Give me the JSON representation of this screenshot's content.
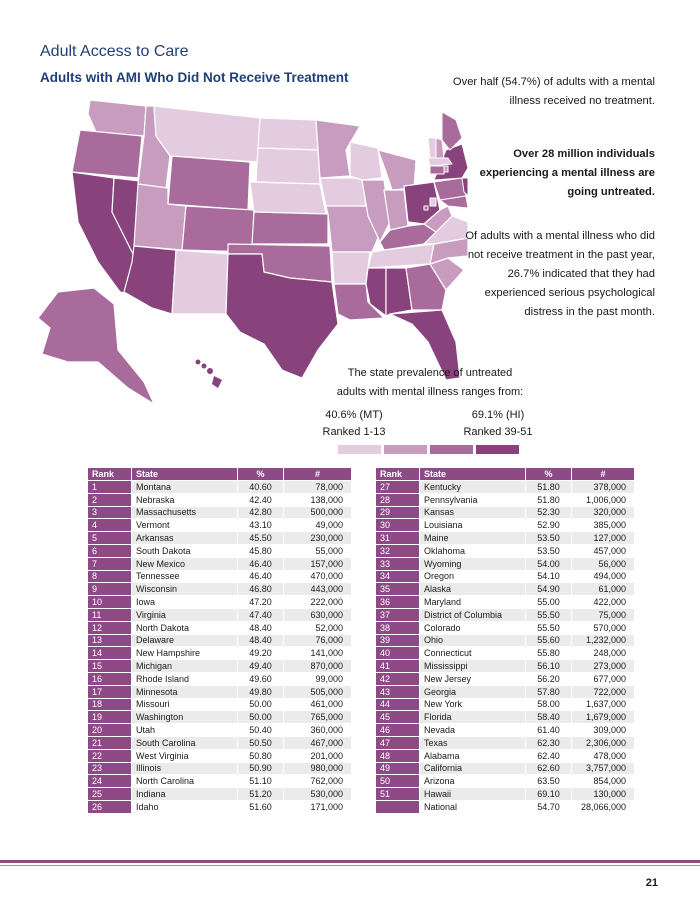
{
  "header": {
    "section_title": "Adult Access to Care",
    "subtitle": "Adults with AMI Who Did Not Receive Treatment"
  },
  "callouts": {
    "p1": "Over half (54.7%) of adults with a mental illness received no treatment.",
    "p2": "Over 28 million individuals experiencing a mental illness are going untreated.",
    "p3": "Of adults with a mental illness who did not receive treatment in the past year, 26.7% indicated that they had experienced serious psychological distress in the past month."
  },
  "legend": {
    "caption": "The state prevalence of untreated adults with mental illness ranges from:",
    "low_value": "40.6% (MT)",
    "low_rank": "Ranked 1-13",
    "high_value": "69.1% (HI)",
    "high_rank": "Ranked 39-51",
    "colors": [
      "#e3ccdf",
      "#c79cbf",
      "#a86b9c",
      "#88427c"
    ]
  },
  "table": {
    "headers": {
      "rank": "Rank",
      "state": "State",
      "percent": "%",
      "count": "#"
    },
    "left_rows": [
      [
        "1",
        "Montana",
        "40.60",
        "78,000"
      ],
      [
        "2",
        "Nebraska",
        "42.40",
        "138,000"
      ],
      [
        "3",
        "Massachusetts",
        "42.80",
        "500,000"
      ],
      [
        "4",
        "Vermont",
        "43.10",
        "49,000"
      ],
      [
        "5",
        "Arkansas",
        "45.50",
        "230,000"
      ],
      [
        "6",
        "South Dakota",
        "45.80",
        "55,000"
      ],
      [
        "7",
        "New Mexico",
        "46.40",
        "157,000"
      ],
      [
        "8",
        "Tennessee",
        "46.40",
        "470,000"
      ],
      [
        "9",
        "Wisconsin",
        "46.80",
        "443,000"
      ],
      [
        "10",
        "Iowa",
        "47.20",
        "222,000"
      ],
      [
        "11",
        "Virginia",
        "47.40",
        "630,000"
      ],
      [
        "12",
        "North Dakota",
        "48.40",
        "52,000"
      ],
      [
        "13",
        "Delaware",
        "48.40",
        "76,000"
      ],
      [
        "14",
        "New Hampshire",
        "49.20",
        "141,000"
      ],
      [
        "15",
        "Michigan",
        "49.40",
        "870,000"
      ],
      [
        "16",
        "Rhode Island",
        "49.60",
        "99,000"
      ],
      [
        "17",
        "Minnesota",
        "49.80",
        "505,000"
      ],
      [
        "18",
        "Missouri",
        "50.00",
        "461,000"
      ],
      [
        "19",
        "Washington",
        "50.00",
        "765,000"
      ],
      [
        "20",
        "Utah",
        "50.40",
        "360,000"
      ],
      [
        "21",
        "South Carolina",
        "50.50",
        "467,000"
      ],
      [
        "22",
        "West Virginia",
        "50.80",
        "201,000"
      ],
      [
        "23",
        "Illinois",
        "50.90",
        "980,000"
      ],
      [
        "24",
        "North Carolina",
        "51.10",
        "762,000"
      ],
      [
        "25",
        "Indiana",
        "51.20",
        "530,000"
      ],
      [
        "26",
        "Idaho",
        "51.60",
        "171,000"
      ]
    ],
    "right_rows": [
      [
        "27",
        "Kentucky",
        "51.80",
        "378,000"
      ],
      [
        "28",
        "Pennsylvania",
        "51.80",
        "1,006,000"
      ],
      [
        "29",
        "Kansas",
        "52.30",
        "320,000"
      ],
      [
        "30",
        "Louisiana",
        "52.90",
        "385,000"
      ],
      [
        "31",
        "Maine",
        "53.50",
        "127,000"
      ],
      [
        "32",
        "Oklahoma",
        "53.50",
        "457,000"
      ],
      [
        "33",
        "Wyoming",
        "54.00",
        "56,000"
      ],
      [
        "34",
        "Oregon",
        "54.10",
        "494,000"
      ],
      [
        "35",
        "Alaska",
        "54.90",
        "61,000"
      ],
      [
        "36",
        "Maryland",
        "55.00",
        "422,000"
      ],
      [
        "37",
        "District of Columbia",
        "55.50",
        "75,000"
      ],
      [
        "38",
        "Colorado",
        "55.50",
        "570,000"
      ],
      [
        "39",
        "Ohio",
        "55.60",
        "1,232,000"
      ],
      [
        "40",
        "Connecticut",
        "55.80",
        "248,000"
      ],
      [
        "41",
        "Mississippi",
        "56.10",
        "273,000"
      ],
      [
        "42",
        "New Jersey",
        "56.20",
        "677,000"
      ],
      [
        "43",
        "Georgia",
        "57.80",
        "722,000"
      ],
      [
        "44",
        "New York",
        "58.00",
        "1,637,000"
      ],
      [
        "45",
        "Florida",
        "58.40",
        "1,679,000"
      ],
      [
        "46",
        "Nevada",
        "61.40",
        "309,000"
      ],
      [
        "47",
        "Texas",
        "62.30",
        "2,306,000"
      ],
      [
        "48",
        "Alabama",
        "62.40",
        "478,000"
      ],
      [
        "49",
        "California",
        "62.60",
        "3,757,000"
      ],
      [
        "50",
        "Arizona",
        "63.50",
        "854,000"
      ],
      [
        "51",
        "Hawaii",
        "69.10",
        "130,000"
      ],
      [
        "",
        "National",
        "54.70",
        "28,066,000"
      ]
    ]
  },
  "footer": {
    "page_number": "21"
  }
}
